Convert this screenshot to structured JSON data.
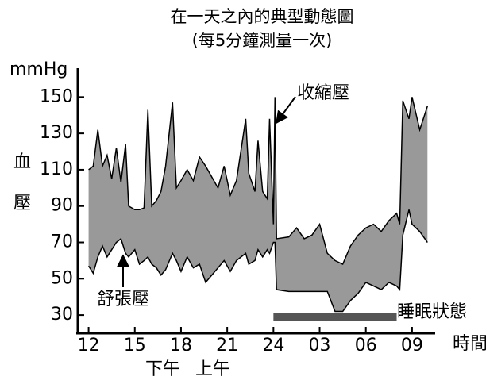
{
  "chart_data": {
    "type": "band",
    "title": "在一天之內的典型動態圖",
    "subtitle": "(每5分鐘測量一次)",
    "y_unit": "mmHg",
    "y_label": "血壓",
    "x_label": "時間",
    "x_sublabels": [
      "下午",
      "上午"
    ],
    "xlim": [
      11.3,
      34.5
    ],
    "ylim": [
      20,
      165
    ],
    "xticks": [
      12,
      15,
      18,
      21,
      24,
      {
        "value": 27,
        "label": "03"
      },
      {
        "value": 30,
        "label": "06"
      },
      {
        "value": 33,
        "label": "09"
      }
    ],
    "yticks": [
      30,
      50,
      70,
      90,
      110,
      130,
      150
    ],
    "band_color": "#999999",
    "line_color": "#000000",
    "x": [
      12.0,
      12.3,
      12.6,
      12.9,
      13.2,
      13.5,
      13.8,
      14.1,
      14.4,
      14.6,
      15.0,
      15.3,
      15.6,
      15.85,
      16.1,
      16.4,
      16.7,
      17.0,
      17.45,
      17.7,
      18.0,
      18.4,
      18.8,
      19.2,
      19.6,
      20.0,
      20.4,
      20.8,
      21.2,
      21.6,
      22.2,
      22.4,
      22.8,
      23.0,
      23.3,
      23.6,
      23.75,
      24.0,
      24.1,
      24.2,
      25.0,
      25.5,
      26.0,
      26.5,
      27.0,
      27.5,
      28.0,
      28.5,
      29.0,
      29.5,
      30.0,
      30.5,
      31.0,
      31.5,
      32.0,
      32.2,
      32.4,
      32.8,
      33.0,
      33.5,
      34.0
    ],
    "series": [
      {
        "name": "收縮壓",
        "values": [
          110,
          112,
          132,
          112,
          118,
          105,
          122,
          103,
          124,
          90,
          88,
          88,
          89,
          143,
          90,
          93,
          98,
          112,
          147,
          100,
          104,
          110,
          104,
          117,
          112,
          106,
          100,
          112,
          96,
          104,
          138,
          108,
          98,
          126,
          98,
          94,
          138,
          80,
          150,
          72,
          73,
          78,
          72,
          74,
          80,
          64,
          60,
          58,
          68,
          74,
          78,
          80,
          76,
          82,
          86,
          80,
          148,
          138,
          150,
          132,
          145
        ]
      },
      {
        "name": "舒張壓",
        "values": [
          57,
          53,
          62,
          68,
          62,
          66,
          70,
          72,
          64,
          62,
          66,
          58,
          60,
          62,
          58,
          56,
          52,
          55,
          64,
          60,
          54,
          62,
          56,
          58,
          48,
          52,
          56,
          60,
          54,
          60,
          64,
          58,
          60,
          66,
          62,
          66,
          64,
          70,
          70,
          44,
          43,
          43,
          43,
          43,
          43,
          43,
          32,
          32,
          38,
          42,
          48,
          46,
          44,
          48,
          46,
          44,
          74,
          88,
          80,
          76,
          70
        ]
      }
    ],
    "sleep": {
      "label": "睡眠狀態",
      "start": 24,
      "end": 32,
      "color": "#555555"
    }
  }
}
